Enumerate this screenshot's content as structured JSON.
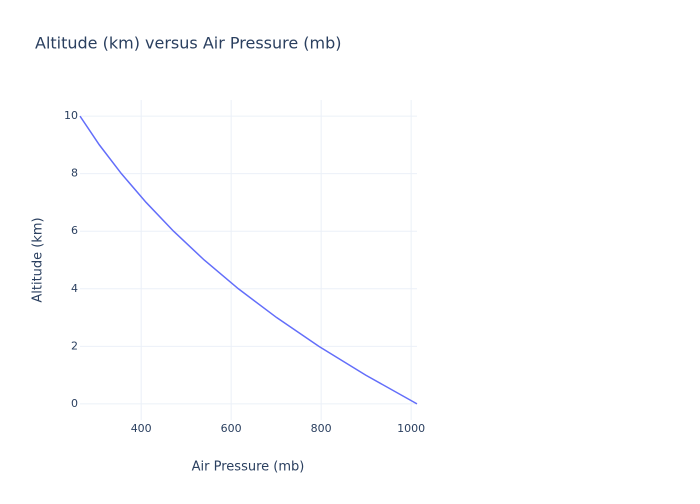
{
  "chart_data": {
    "type": "line",
    "title": "Altitude (km) versus Air Pressure (mb)",
    "x_label": "Air Pressure (mb)",
    "y_label": "Altitude (km)",
    "x": [
      1013,
      899,
      795,
      701,
      616,
      540,
      472,
      411,
      356,
      307,
      264
    ],
    "series": [
      {
        "color": "#636efa",
        "values": [
          0,
          1,
          2,
          3,
          4,
          5,
          6,
          7,
          8,
          9,
          10
        ]
      }
    ],
    "xlim": [
      264,
      1013
    ],
    "xticks": [
      400,
      600,
      800,
      1000
    ],
    "ylim": [
      -0.56,
      10.56
    ],
    "yticks": [
      0,
      2,
      4,
      6,
      8,
      10
    ],
    "grid": true
  }
}
